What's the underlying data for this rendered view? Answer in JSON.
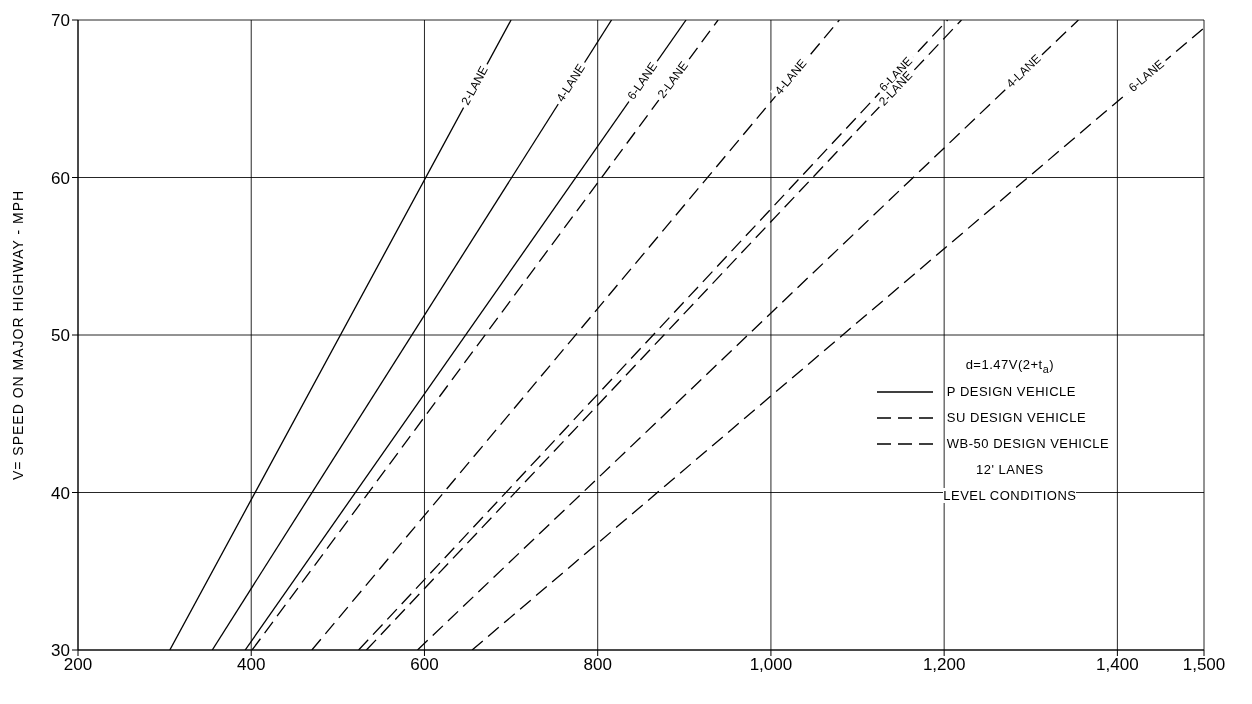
{
  "chart_data": {
    "type": "line",
    "ylabel": "V= SPEED ON MAJOR HIGHWAY - MPH",
    "xlim": [
      200,
      1500
    ],
    "xticks": [
      200,
      400,
      600,
      800,
      {
        "value": 1000,
        "label": "1,000"
      },
      {
        "value": 1200,
        "label": "1,200"
      },
      {
        "value": 1400,
        "label": "1,400"
      },
      {
        "value": 1500,
        "label": "1,500"
      }
    ],
    "ylim": [
      30,
      70
    ],
    "yticks": [
      30,
      40,
      50,
      60,
      70
    ],
    "grid": true,
    "marker": "none",
    "series": [
      {
        "name": "2-LANE",
        "color": "#000000",
        "line_style": "solid",
        "x": [
          306,
          700
        ],
        "values": [
          30,
          70
        ]
      },
      {
        "name": "4-LANE",
        "color": "#000000",
        "line_style": "solid",
        "x": [
          355,
          816
        ],
        "values": [
          30,
          70
        ]
      },
      {
        "name": "6-LANE",
        "color": "#000000",
        "line_style": "solid",
        "x": [
          393,
          902
        ],
        "values": [
          30,
          70
        ]
      },
      {
        "name": "2-LANE",
        "color": "#000000",
        "line_style": "dashed",
        "x": [
          401,
          939
        ],
        "values": [
          30,
          70
        ]
      },
      {
        "name": "4-LANE",
        "color": "#000000",
        "line_style": "dashed",
        "x": [
          470,
          1079
        ],
        "values": [
          30,
          70
        ]
      },
      {
        "name": "6-LANE",
        "color": "#000000",
        "line_style": "dashed",
        "x": [
          524,
          1204
        ],
        "values": [
          30,
          70
        ]
      },
      {
        "name": "2-LANE",
        "color": "#000000",
        "line_style": "dashed",
        "x": [
          533,
          1220
        ],
        "values": [
          30,
          70
        ]
      },
      {
        "name": "4-LANE",
        "color": "#000000",
        "line_style": "dashed",
        "x": [
          592,
          1355
        ],
        "values": [
          30,
          70
        ]
      },
      {
        "name": "6-LANE",
        "color": "#000000",
        "line_style": "dashed",
        "x": [
          655,
          1500
        ],
        "values": [
          30,
          69.5
        ]
      }
    ],
    "annotations": [
      "d=1.47V(2+t$_{a}$)",
      "P DESIGN VEHICLE",
      "SU DESIGN VEHICLE",
      "WB-50 DESIGN VEHICLE",
      "12' LANES",
      "LEVEL CONDITIONS"
    ]
  }
}
